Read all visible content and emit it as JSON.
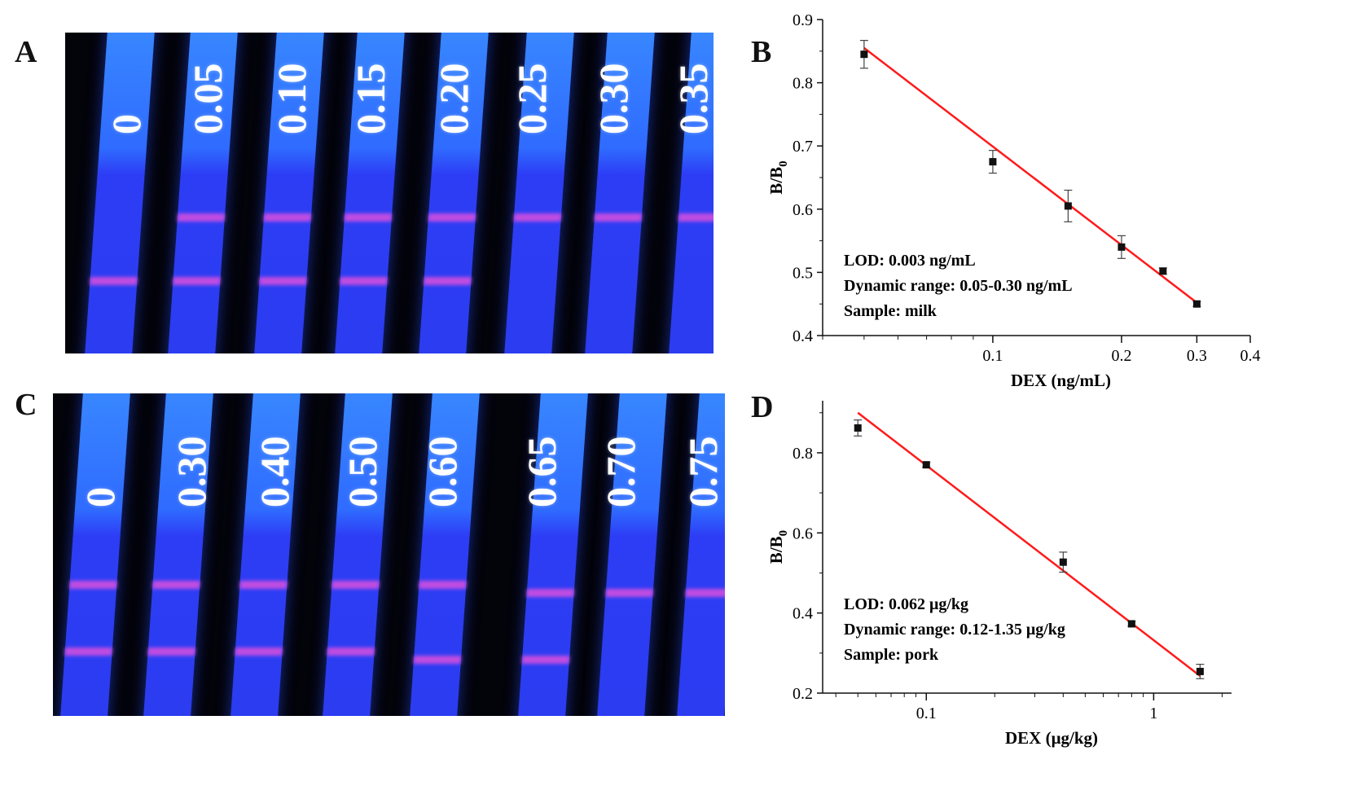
{
  "panels": {
    "A": {
      "label": "A",
      "concentrations": [
        "0",
        "0.05",
        "0.10",
        "0.15",
        "0.20",
        "0.25",
        "0.30",
        "0.35"
      ]
    },
    "B": {
      "label": "B"
    },
    "C": {
      "label": "C",
      "concentrations": [
        "0",
        "0.30",
        "0.40",
        "0.50",
        "0.60",
        "0.65",
        "0.70",
        "0.75"
      ]
    },
    "D": {
      "label": "D"
    }
  },
  "colors": {
    "fit_line": "#ff1a1a",
    "points": "#111111",
    "strip_blue": "#2c3cf0",
    "band_magenta": "#e650dc"
  },
  "chart_data": [
    {
      "type": "scatter",
      "panel": "B",
      "xscale": "log",
      "x": [
        0.05,
        0.1,
        0.15,
        0.2,
        0.25,
        0.3
      ],
      "y": [
        0.845,
        0.675,
        0.605,
        0.54,
        0.502,
        0.45
      ],
      "yerr": [
        0.022,
        0.018,
        0.025,
        0.018,
        0.005,
        0.004
      ],
      "fit": {
        "x": [
          0.05,
          0.3
        ],
        "y": [
          0.855,
          0.452
        ]
      },
      "xlim": [
        0.04,
        0.4
      ],
      "ylim": [
        0.4,
        0.9
      ],
      "xticks": [
        0.1,
        0.2,
        0.3,
        0.4
      ],
      "xtick_labels": [
        "0.1",
        "0.2",
        "0.3",
        "0.4"
      ],
      "yticks": [
        0.4,
        0.5,
        0.6,
        0.7,
        0.8,
        0.9
      ],
      "ytick_labels": [
        "0.4",
        "0.5",
        "0.6",
        "0.7",
        "0.8",
        "0.9"
      ],
      "xlabel": "DEX (ng/mL)",
      "ylabel_main": "B/B",
      "ylabel_sub": "0",
      "annotations": [
        "LOD: 0.003 ng/mL",
        "Dynamic range: 0.05-0.30 ng/mL",
        "Sample: milk"
      ]
    },
    {
      "type": "scatter",
      "panel": "D",
      "xscale": "log",
      "x": [
        0.05,
        0.1,
        0.4,
        0.8,
        1.6
      ],
      "y": [
        0.862,
        0.77,
        0.527,
        0.373,
        0.254
      ],
      "yerr": [
        0.02,
        0.006,
        0.025,
        0.006,
        0.018
      ],
      "fit": {
        "x": [
          0.05,
          1.6
        ],
        "y": [
          0.9,
          0.243
        ]
      },
      "xlim": [
        0.035,
        2.2
      ],
      "ylim": [
        0.2,
        0.93
      ],
      "xticks": [
        0.1,
        1
      ],
      "xtick_labels": [
        "0.1",
        "1"
      ],
      "yticks": [
        0.2,
        0.4,
        0.6,
        0.8
      ],
      "ytick_labels": [
        "0.2",
        "0.4",
        "0.6",
        "0.8"
      ],
      "xlabel": "DEX (μg/kg)",
      "ylabel_main": "B/B",
      "ylabel_sub": "0",
      "annotations": [
        "LOD: 0.062 μg/kg",
        "Dynamic range: 0.12-1.35 μg/kg",
        "Sample: pork"
      ]
    }
  ]
}
